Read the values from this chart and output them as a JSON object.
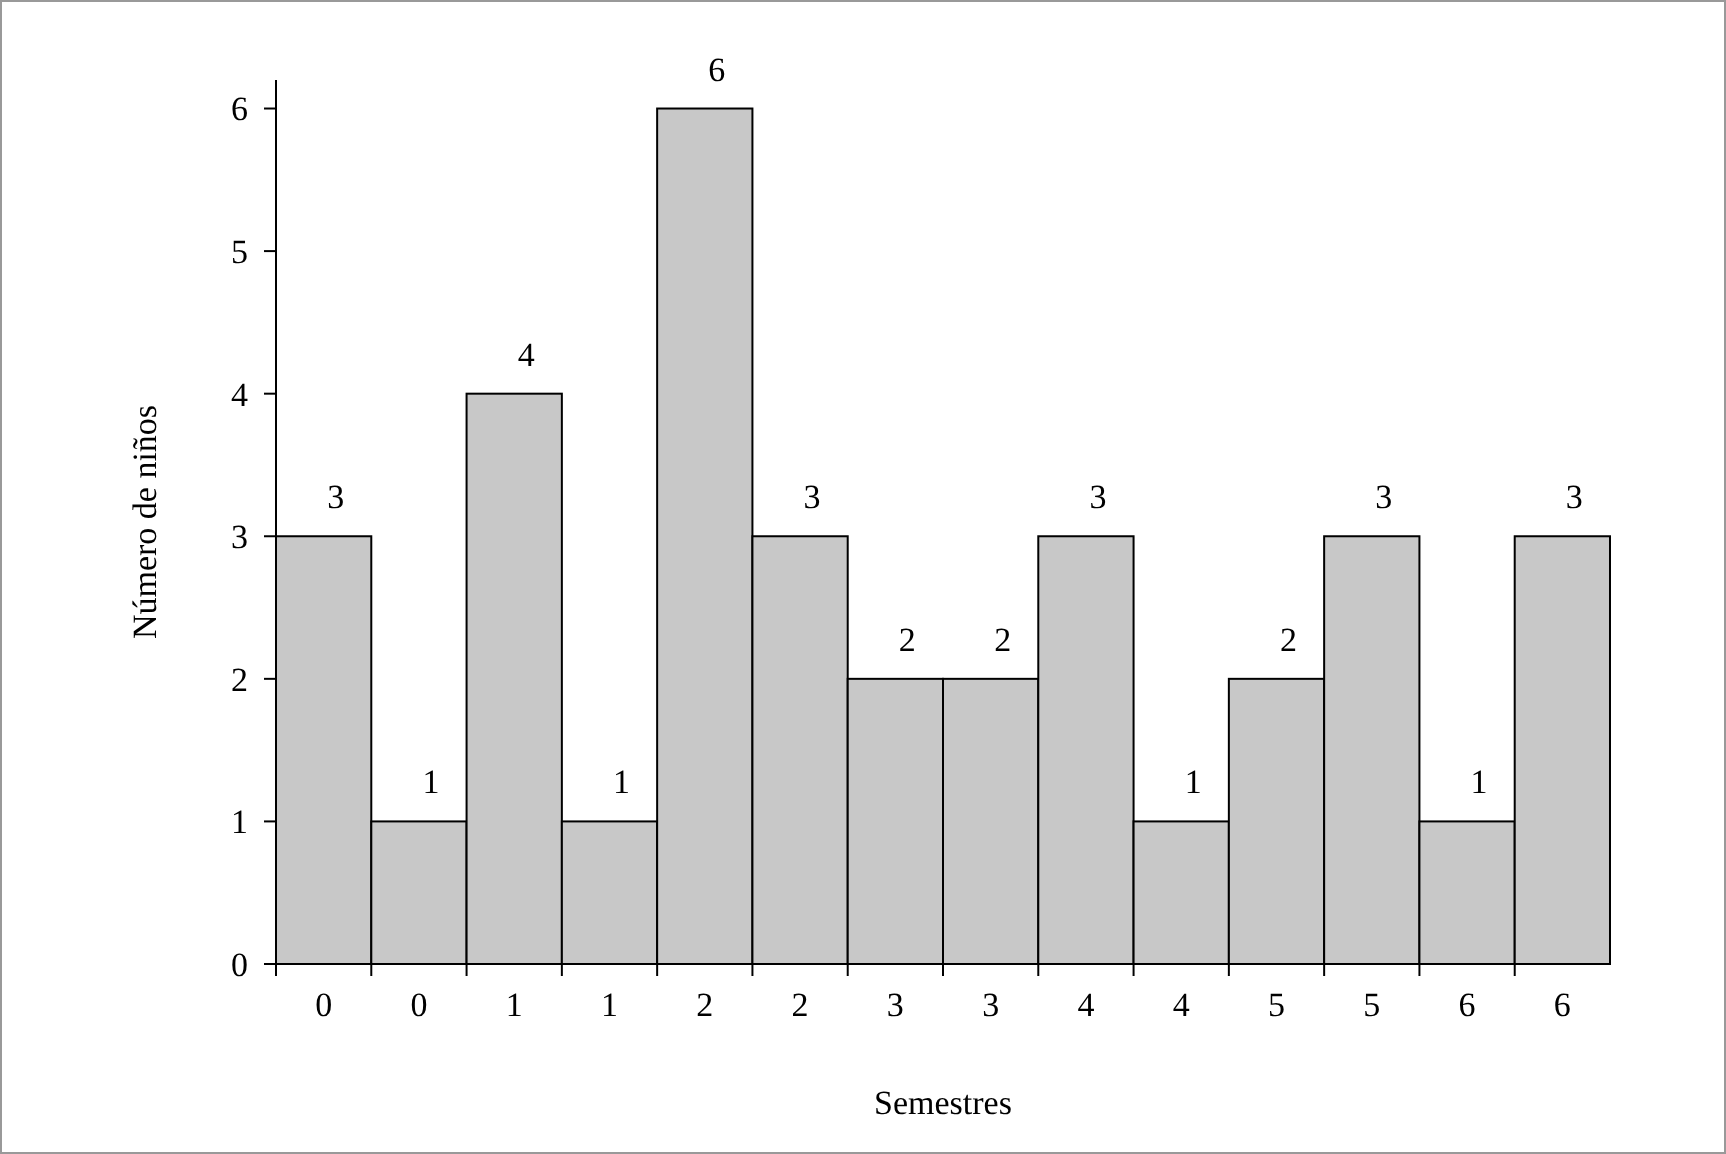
{
  "chart_data": {
    "type": "bar",
    "xlabel": "Semestres",
    "ylabel": "Número de niños",
    "categories": [
      "0",
      "0",
      "1",
      "1",
      "2",
      "2",
      "3",
      "3",
      "4",
      "4",
      "5",
      "5",
      "6",
      "6"
    ],
    "values": [
      3,
      1,
      4,
      1,
      6,
      3,
      2,
      2,
      3,
      1,
      2,
      3,
      1,
      3
    ],
    "color": "#c8c8c8",
    "ylim": [
      0,
      6.2
    ],
    "yticks": [
      0,
      1,
      2,
      3,
      4,
      5,
      6
    ],
    "data_labels": true,
    "grid": false
  }
}
